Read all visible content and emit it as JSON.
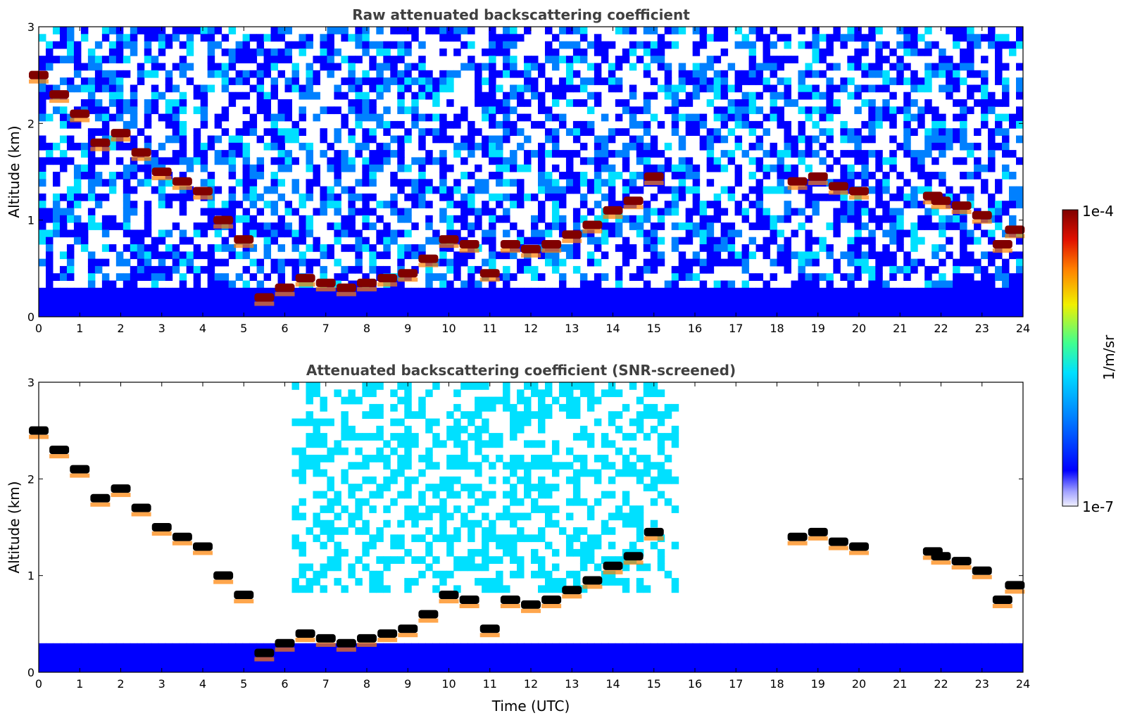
{
  "colors": {
    "colormap": [
      "#ffffff",
      "#0000ff",
      "#0080ff",
      "#00e0ff",
      "#40ff80",
      "#e0f000",
      "#ff8000",
      "#e01000",
      "#800000"
    ],
    "background": "#ffffff"
  },
  "chart_data": [
    {
      "type": "heatmap",
      "title": "Raw attenuated backscattering coefficient",
      "xlabel": "",
      "ylabel": "Altitude (km)",
      "xlim": [
        0,
        24
      ],
      "ylim": [
        0,
        3
      ],
      "xticks": [
        "0",
        "1",
        "2",
        "3",
        "4",
        "5",
        "6",
        "7",
        "8",
        "9",
        "10",
        "11",
        "12",
        "13",
        "14",
        "15",
        "16",
        "17",
        "18",
        "19",
        "20",
        "21",
        "22",
        "23",
        "24"
      ],
      "yticks": [
        "0",
        "1",
        "2",
        "3"
      ],
      "grid": false,
      "cloud_base_km": {
        "x": [
          0,
          0.5,
          1,
          1.5,
          2,
          2.5,
          3,
          3.5,
          4,
          4.5,
          5,
          5.5,
          6,
          6.5,
          7,
          7.5,
          8,
          8.5,
          9,
          9.5,
          10,
          10.5,
          11,
          11.5,
          12,
          12.5,
          13,
          13.5,
          14,
          14.5,
          15,
          18.5,
          19,
          19.5,
          20,
          21.8,
          22,
          22.5,
          23,
          23.5,
          23.8
        ],
        "y": [
          2.5,
          2.3,
          2.1,
          1.8,
          1.9,
          1.7,
          1.5,
          1.4,
          1.3,
          1.0,
          0.8,
          0.2,
          0.3,
          0.4,
          0.35,
          0.3,
          0.35,
          0.4,
          0.45,
          0.6,
          0.8,
          0.75,
          0.45,
          0.75,
          0.7,
          0.75,
          0.85,
          0.95,
          1.1,
          1.2,
          1.45,
          1.4,
          1.45,
          1.35,
          1.3,
          1.25,
          1.2,
          1.15,
          1.05,
          0.75,
          0.9
        ]
      }
    },
    {
      "type": "heatmap",
      "title": "Attenuated backscattering coefficient (SNR-screened)",
      "xlabel": "Time (UTC)",
      "ylabel": "Altitude (km)",
      "xlim": [
        0,
        24
      ],
      "ylim": [
        0,
        3
      ],
      "xticks": [
        "0",
        "1",
        "2",
        "3",
        "4",
        "5",
        "6",
        "7",
        "8",
        "9",
        "10",
        "11",
        "12",
        "13",
        "14",
        "15",
        "16",
        "17",
        "18",
        "19",
        "20",
        "21",
        "22",
        "23",
        "24"
      ],
      "yticks": [
        "0",
        "1",
        "2",
        "3"
      ],
      "grid": false,
      "colorbar": {
        "label": "1/m/sr",
        "min_label": "1e-7",
        "max_label": "1e-4",
        "scale": "log",
        "range": [
          1e-07,
          0.0001
        ]
      }
    }
  ]
}
